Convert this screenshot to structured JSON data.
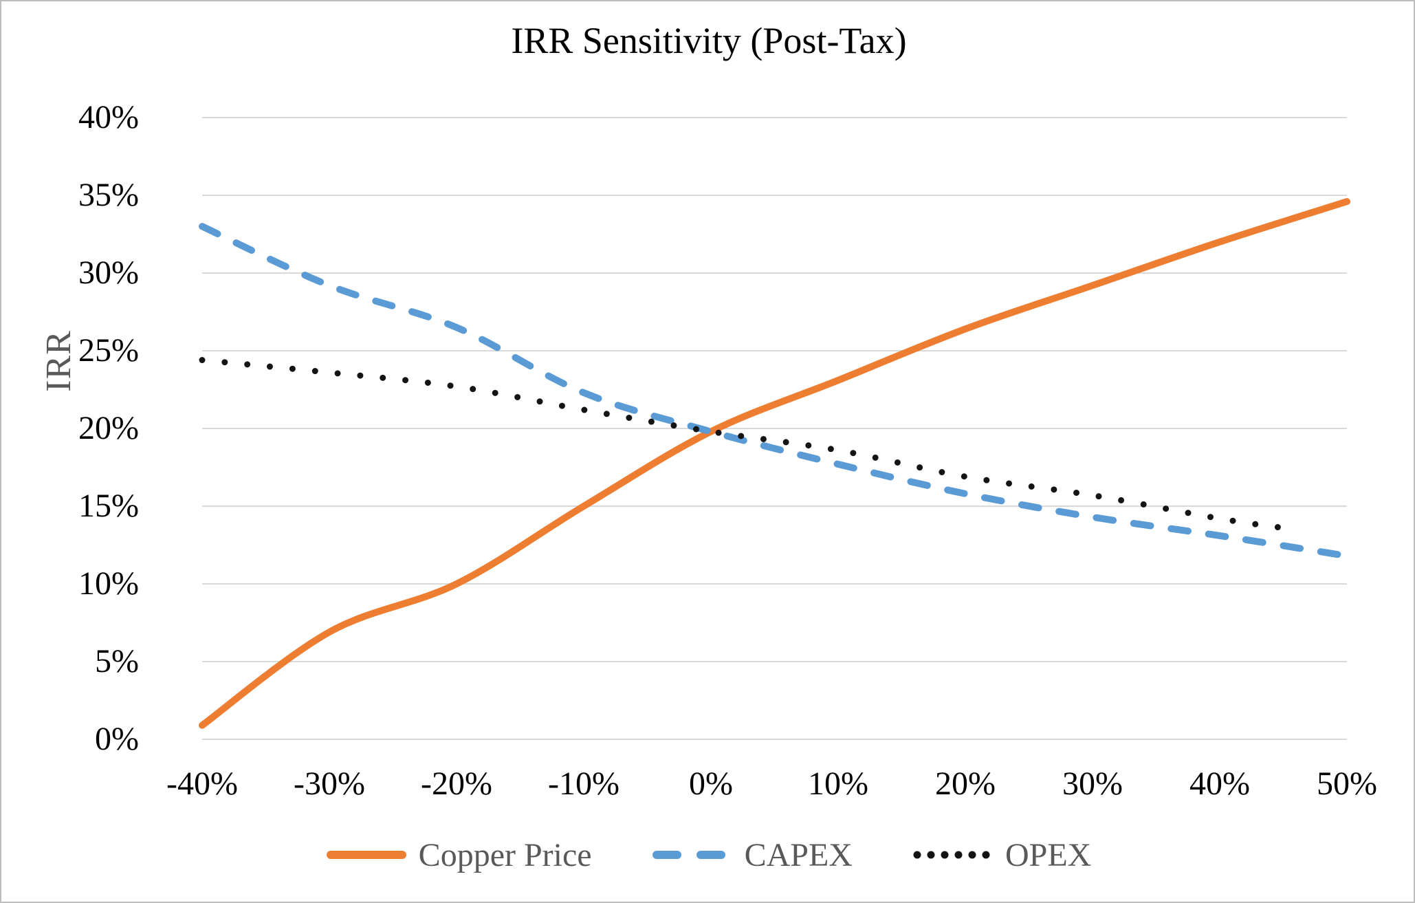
{
  "colors": {
    "gridline": "#D9D9D9",
    "canvas_border": "#BDBDBD",
    "text_primary": "#000000",
    "text_secondary": "#595959"
  },
  "chart_data": {
    "type": "line",
    "title": "IRR Sensitivity (Post-Tax)",
    "xlabel": "",
    "ylabel": "IRR",
    "xlim": [
      -40,
      50
    ],
    "ylim": [
      0,
      40
    ],
    "grid": "horizontal",
    "legend_position": "bottom",
    "x_tick_values": [
      -40,
      -30,
      -20,
      -10,
      0,
      10,
      20,
      30,
      40,
      50
    ],
    "x_ticks": [
      "-40%",
      "-30%",
      "-20%",
      "-10%",
      "0%",
      "10%",
      "20%",
      "30%",
      "40%",
      "50%"
    ],
    "y_tick_values": [
      0,
      5,
      10,
      15,
      20,
      25,
      30,
      35,
      40
    ],
    "y_ticks": [
      "0%",
      "5%",
      "10%",
      "15%",
      "20%",
      "25%",
      "30%",
      "35%",
      "40%"
    ],
    "series": [
      {
        "name": "Copper Price",
        "color": "#ED7D31",
        "style": "solid",
        "x": [
          -40,
          -30,
          -20,
          -10,
          0,
          10,
          20,
          30,
          40,
          50
        ],
        "values": [
          0.9,
          6.9,
          10.0,
          15.0,
          19.8,
          23.1,
          26.4,
          29.2,
          32.0,
          34.6
        ]
      },
      {
        "name": "CAPEX",
        "color": "#5B9BD5",
        "style": "dashed",
        "x": [
          -40,
          -30,
          -20,
          -10,
          0,
          10,
          20,
          30,
          40,
          50
        ],
        "values": [
          33.0,
          29.2,
          26.5,
          22.3,
          19.8,
          17.7,
          15.8,
          14.3,
          13.1,
          11.8
        ]
      },
      {
        "name": "OPEX",
        "color": "#141414",
        "style": "dotted",
        "x": [
          -40,
          -30,
          -20,
          -10,
          0,
          10,
          20,
          30,
          40,
          45
        ],
        "values": [
          24.4,
          23.6,
          22.7,
          21.2,
          19.8,
          18.6,
          16.9,
          15.7,
          14.2,
          13.6
        ]
      }
    ]
  }
}
